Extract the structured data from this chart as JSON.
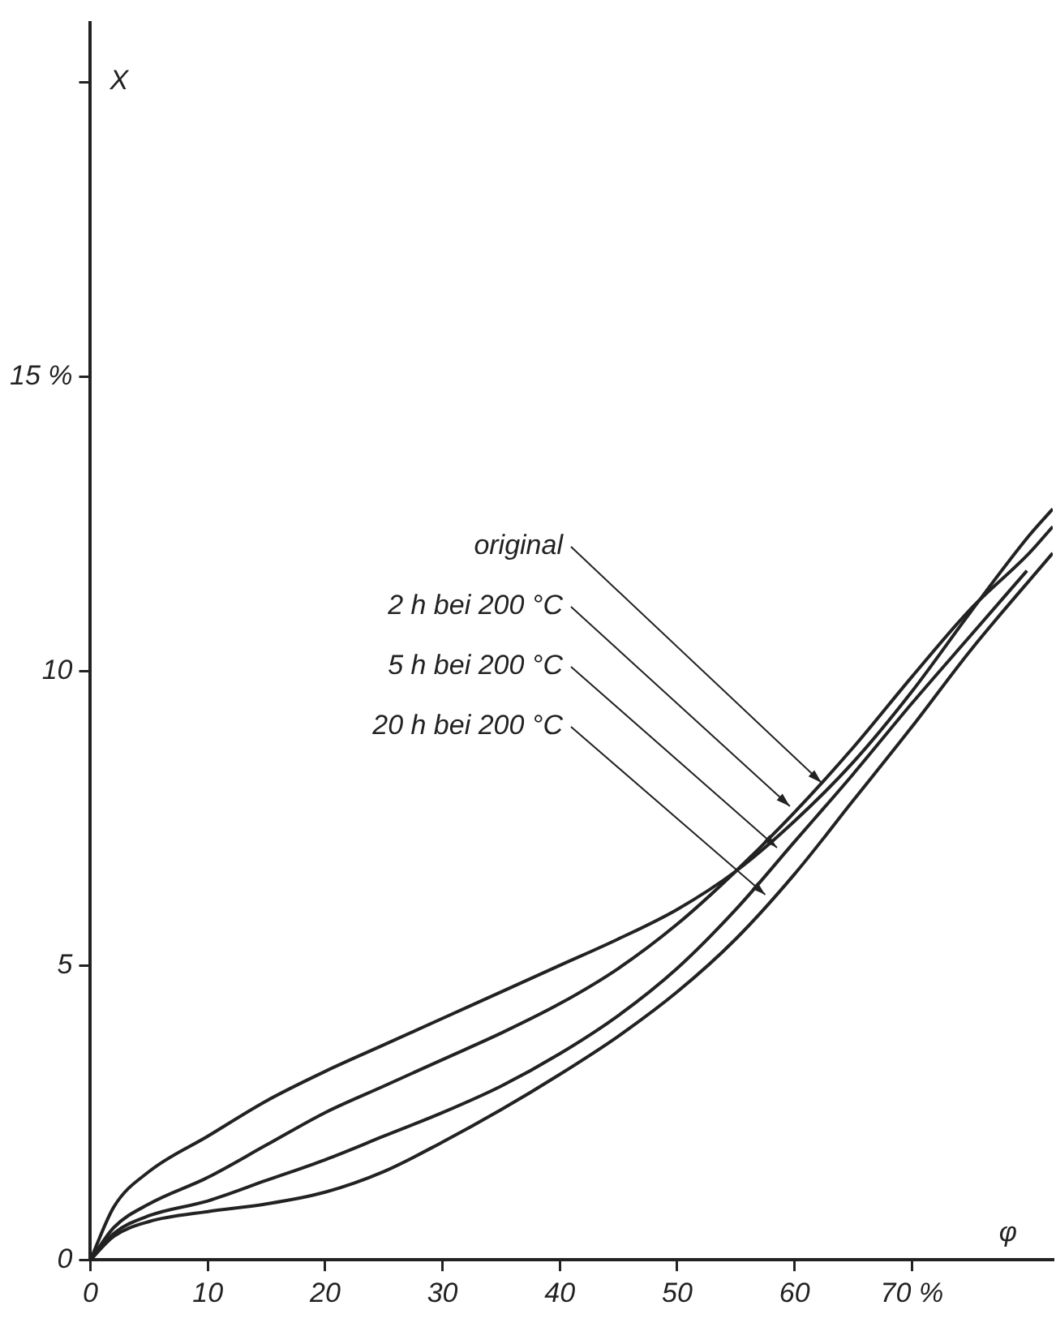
{
  "chart_data": {
    "type": "line",
    "xlabel": "φ",
    "ylabel": "X",
    "xlim": [
      0,
      82
    ],
    "ylim": [
      0,
      21
    ],
    "xticks": [
      0,
      10,
      20,
      30,
      40,
      50,
      60,
      {
        "value": 70,
        "label": "70 %"
      }
    ],
    "yticks": [
      0,
      5,
      10,
      {
        "value": 15,
        "label": "15 %"
      },
      {
        "value": 20,
        "label": null
      }
    ],
    "annotations": [
      {
        "text": "original",
        "x": 62.3,
        "y": 8.1
      },
      {
        "text": "2 h bei 200 °C",
        "x": 59.6,
        "y": 7.7
      },
      {
        "text": "5 h bei 200 °C",
        "x": 58.5,
        "y": 7.0
      },
      {
        "text": "20 h bei 200 °C",
        "x": 57.5,
        "y": 6.2
      }
    ],
    "grid": false,
    "legend": false,
    "marker": "none",
    "line_style": "solid",
    "series": [
      {
        "color": "#222222",
        "x": [
          0,
          2,
          5,
          10,
          15,
          20,
          25,
          30,
          35,
          40,
          45,
          50,
          55,
          60,
          65,
          70,
          75,
          80,
          82
        ],
        "values": [
          0,
          0.9,
          1.5,
          2.1,
          2.7,
          3.2,
          3.65,
          4.1,
          4.55,
          5.0,
          5.45,
          5.95,
          6.6,
          7.45,
          8.45,
          9.65,
          11.0,
          12.3,
          12.75
        ]
      },
      {
        "color": "#222222",
        "x": [
          0,
          2,
          5,
          10,
          15,
          20,
          25,
          30,
          35,
          40,
          45,
          50,
          55,
          60,
          65,
          70,
          75,
          80,
          82
        ],
        "values": [
          0,
          0.55,
          0.95,
          1.4,
          1.95,
          2.5,
          2.95,
          3.4,
          3.85,
          4.35,
          4.95,
          5.7,
          6.6,
          7.6,
          8.7,
          9.9,
          11.05,
          12.0,
          12.45
        ]
      },
      {
        "color": "#222222",
        "x": [
          0,
          2,
          5,
          10,
          15,
          20,
          25,
          30,
          35,
          40,
          45,
          50,
          55,
          60,
          65,
          70,
          75,
          79.8
        ],
        "values": [
          0,
          0.45,
          0.75,
          1.0,
          1.35,
          1.7,
          2.1,
          2.5,
          2.95,
          3.5,
          4.15,
          4.95,
          5.95,
          7.1,
          8.25,
          9.45,
          10.6,
          11.7
        ]
      },
      {
        "color": "#222222",
        "x": [
          0,
          2,
          5,
          10,
          15,
          20,
          25,
          30,
          35,
          40,
          45,
          50,
          55,
          60,
          65,
          70,
          75,
          82
        ],
        "values": [
          0,
          0.4,
          0.65,
          0.82,
          0.95,
          1.15,
          1.5,
          2.0,
          2.55,
          3.15,
          3.8,
          4.55,
          5.45,
          6.55,
          7.8,
          9.05,
          10.35,
          12.0
        ]
      }
    ]
  }
}
